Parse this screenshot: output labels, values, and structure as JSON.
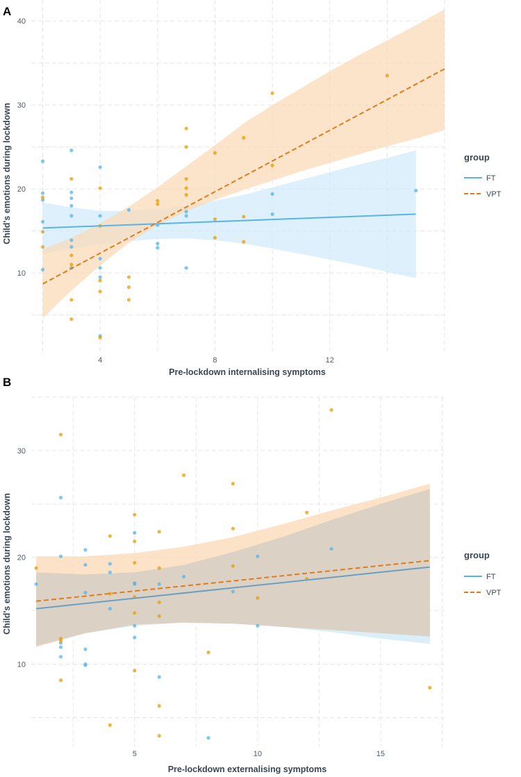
{
  "colors": {
    "ft": "#56B4E9",
    "vpt": "#E69F00",
    "ft_band": "#cfe9fa",
    "vpt_band": "#fbd9b5",
    "text": "#3a4656"
  },
  "chart_data": [
    {
      "panel": "A",
      "type": "scatter",
      "xlabel": "Pre-lockdown internalising symptoms",
      "ylabel": "Child's emotions during lockdown",
      "xlim": [
        1.6,
        16.0
      ],
      "ylim": [
        0.5,
        42.5
      ],
      "xticks": [
        4,
        8,
        12
      ],
      "yticks": [
        10,
        20,
        30,
        40
      ],
      "xtick_labels": [
        "4",
        "8",
        "12"
      ],
      "ytick_labels": [
        "10",
        "20",
        "30",
        "40"
      ],
      "legend": {
        "title": "group",
        "entries": [
          "FT",
          "VPT"
        ],
        "position": "right"
      },
      "series": [
        {
          "name": "FT",
          "points": [
            [
              2,
              23.3
            ],
            [
              2,
              19.5
            ],
            [
              2,
              18.7
            ],
            [
              2,
              16.1
            ],
            [
              2,
              10.4
            ],
            [
              3,
              24.6
            ],
            [
              3,
              19.6
            ],
            [
              3,
              18.9
            ],
            [
              3,
              18
            ],
            [
              3,
              16.8
            ],
            [
              3,
              13.9
            ],
            [
              3,
              13.1
            ],
            [
              3,
              10.6
            ],
            [
              4,
              22.6
            ],
            [
              4,
              16.8
            ],
            [
              4,
              11.7
            ],
            [
              4,
              10.6
            ],
            [
              4,
              9.5
            ],
            [
              4,
              2.5
            ],
            [
              5,
              17.5
            ],
            [
              6,
              15.7
            ],
            [
              6,
              13.5
            ],
            [
              6,
              13
            ],
            [
              7,
              17.3
            ],
            [
              7,
              16.8
            ],
            [
              7,
              10.6
            ],
            [
              10,
              19.4
            ],
            [
              10,
              17
            ],
            [
              15,
              19.8
            ]
          ],
          "fit": {
            "x": [
              2,
              15
            ],
            "y": [
              15.35,
              17.0
            ]
          },
          "band": {
            "x": [
              2,
              3,
              4,
              5,
              6,
              7,
              8,
              9,
              10,
              11,
              12,
              13,
              14,
              15
            ],
            "lower": [
              12.3,
              12.9,
              13.4,
              13.8,
              14.05,
              14.1,
              13.9,
              13.5,
              12.9,
              12.25,
              11.6,
              10.9,
              10.1,
              9.4
            ],
            "upper": [
              18.4,
              17.8,
              17.4,
              17.4,
              17.6,
              18.0,
              18.6,
              19.3,
              20.2,
              21.1,
              22.0,
              22.9,
              23.7,
              24.6
            ]
          }
        },
        {
          "name": "VPT",
          "points": [
            [
              2,
              14.9
            ],
            [
              2,
              13.1
            ],
            [
              2,
              19
            ],
            [
              3,
              21.2
            ],
            [
              3,
              12.1
            ],
            [
              3,
              11
            ],
            [
              3,
              6.8
            ],
            [
              3,
              4.5
            ],
            [
              4,
              20.1
            ],
            [
              4,
              15.6
            ],
            [
              4,
              9.1
            ],
            [
              4,
              7.8
            ],
            [
              4,
              2.3
            ],
            [
              5,
              9.5
            ],
            [
              5,
              8.3
            ],
            [
              5,
              6.8
            ],
            [
              6,
              18.6
            ],
            [
              6,
              18.2
            ],
            [
              7,
              27.2
            ],
            [
              7,
              25
            ],
            [
              7,
              21.2
            ],
            [
              7,
              20.1
            ],
            [
              7,
              19.3
            ],
            [
              8,
              24.3
            ],
            [
              8,
              16.4
            ],
            [
              8,
              14.2
            ],
            [
              9,
              26.1
            ],
            [
              9,
              16.7
            ],
            [
              9,
              13.7
            ],
            [
              10,
              31.4
            ],
            [
              10,
              22.8
            ],
            [
              14,
              33.5
            ]
          ],
          "fit": {
            "x": [
              2,
              16
            ],
            "y": [
              8.7,
              34.3
            ]
          },
          "band": {
            "x": [
              2,
              3,
              4,
              5,
              6,
              7,
              8,
              9,
              10,
              11,
              12,
              13,
              14,
              15,
              16
            ],
            "lower": [
              4.6,
              7.9,
              10.9,
              13.6,
              15.7,
              17.3,
              18.7,
              19.9,
              21.0,
              22.1,
              23.1,
              24.1,
              25.1,
              26.0,
              27.0
            ],
            "upper": [
              12.8,
              14.2,
              15.9,
              17.9,
              20.2,
              22.7,
              25.2,
              27.8,
              30.0,
              32.0,
              34.0,
              35.9,
              37.7,
              39.5,
              41.4
            ]
          }
        }
      ]
    },
    {
      "panel": "B",
      "type": "scatter",
      "xlabel": "Pre-lockdown externalising symptoms",
      "ylabel": "Child's emotions during lockdown",
      "xlim": [
        0.8,
        17.6
      ],
      "ylim": [
        2.3,
        35.0
      ],
      "xticks": [
        5,
        10,
        15
      ],
      "yticks": [
        10,
        20,
        30
      ],
      "xtick_labels": [
        "5",
        "10",
        "15"
      ],
      "ytick_labels": [
        "10",
        "20",
        "30"
      ],
      "legend": {
        "title": "group",
        "entries": [
          "FT",
          "VPT"
        ],
        "position": "right"
      },
      "series": [
        {
          "name": "FT",
          "points": [
            [
              1,
              17.5
            ],
            [
              2,
              25.6
            ],
            [
              2,
              20.1
            ],
            [
              2,
              12
            ],
            [
              2,
              11.6
            ],
            [
              2,
              10.7
            ],
            [
              3,
              20.7
            ],
            [
              3,
              19.3
            ],
            [
              3,
              16.7
            ],
            [
              3,
              11.4
            ],
            [
              3,
              10
            ],
            [
              3,
              9.9
            ],
            [
              4,
              19.4
            ],
            [
              4,
              18.6
            ],
            [
              4,
              15.2
            ],
            [
              5,
              22.3
            ],
            [
              5,
              17.6
            ],
            [
              5,
              17.5
            ],
            [
              5,
              13.6
            ],
            [
              5,
              12.5
            ],
            [
              6,
              17.5
            ],
            [
              6,
              8.8
            ],
            [
              7,
              18.2
            ],
            [
              8,
              3.1
            ],
            [
              9,
              16.8
            ],
            [
              10,
              20.1
            ],
            [
              10,
              13.6
            ],
            [
              13,
              20.8
            ]
          ],
          "fit": {
            "x": [
              1,
              17
            ],
            "y": [
              15.2,
              19.1
            ]
          },
          "band": {
            "x": [
              1,
              3,
              5,
              7,
              9,
              11,
              13,
              15,
              17
            ],
            "lower": [
              11.7,
              12.9,
              13.6,
              13.9,
              13.8,
              13.5,
              13.0,
              12.4,
              11.9
            ],
            "upper": [
              18.6,
              18.4,
              18.6,
              19.3,
              20.5,
              21.9,
              23.5,
              25.0,
              26.4
            ]
          }
        },
        {
          "name": "VPT",
          "points": [
            [
              1,
              19
            ],
            [
              2,
              31.5
            ],
            [
              2,
              12.4
            ],
            [
              2,
              12.2
            ],
            [
              2,
              8.5
            ],
            [
              4,
              22
            ],
            [
              4,
              16.6
            ],
            [
              4,
              4.3
            ],
            [
              5,
              24
            ],
            [
              5,
              21.5
            ],
            [
              5,
              19.5
            ],
            [
              5,
              16.3
            ],
            [
              5,
              14.8
            ],
            [
              5,
              9.4
            ],
            [
              6,
              22.4
            ],
            [
              6,
              19
            ],
            [
              6,
              15.8
            ],
            [
              6,
              14.5
            ],
            [
              6,
              6.1
            ],
            [
              6,
              3.3
            ],
            [
              7,
              27.7
            ],
            [
              8,
              11.1
            ],
            [
              9,
              26.9
            ],
            [
              9,
              22.7
            ],
            [
              9,
              19.2
            ],
            [
              10,
              16.2
            ],
            [
              12,
              24.2
            ],
            [
              12,
              18
            ],
            [
              13,
              33.8
            ],
            [
              17,
              7.8
            ]
          ],
          "fit": {
            "x": [
              1,
              17
            ],
            "y": [
              15.9,
              19.7
            ]
          },
          "band": {
            "x": [
              1,
              3,
              5,
              7,
              9,
              11,
              13,
              15,
              17
            ],
            "lower": [
              11.6,
              12.9,
              13.7,
              13.9,
              13.8,
              13.5,
              13.2,
              12.9,
              12.6
            ],
            "upper": [
              20.1,
              20.1,
              20.4,
              21.0,
              21.9,
              23.1,
              24.4,
              25.6,
              26.9
            ]
          }
        }
      ]
    }
  ]
}
